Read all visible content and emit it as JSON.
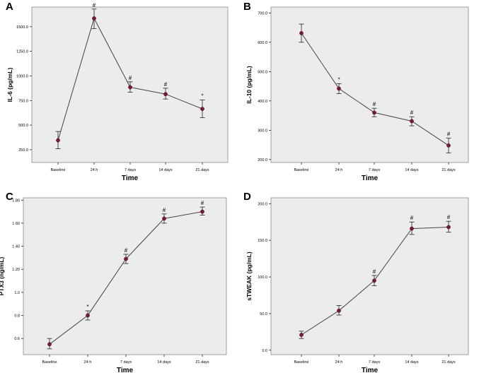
{
  "chart_data": [
    {
      "type": "line",
      "panel": "A",
      "title": "",
      "xlabel": "Time",
      "ylabel": "IL-6 (pg/mL)",
      "categories": [
        "Baseline",
        "24 h",
        "7 days",
        "14 days",
        "21 days"
      ],
      "values": [
        345,
        1585,
        885,
        815,
        665
      ],
      "err_low": [
        260,
        1480,
        835,
        765,
        575
      ],
      "err_high": [
        435,
        1680,
        940,
        875,
        755
      ],
      "annotations": [
        "",
        "#",
        "#",
        "#",
        "*"
      ],
      "yticks": [
        250.0,
        500.0,
        750.0,
        1000.0,
        1250.0,
        1500.0
      ],
      "ytick_labels": [
        "250.0",
        "500.0",
        "750.0",
        "1000.0",
        "1250.0",
        "1500.0"
      ],
      "ylim": [
        120,
        1700
      ],
      "grid": false,
      "colors": {
        "line": "#444444",
        "marker": "#7a1a2e",
        "background": "#ececec"
      }
    },
    {
      "type": "line",
      "panel": "B",
      "title": "",
      "xlabel": "Time",
      "ylabel": "IL-10 (pg/mL)",
      "categories": [
        "Baseline",
        "24 h",
        "7 days",
        "14 days",
        "21 days"
      ],
      "values": [
        631,
        442,
        360,
        331,
        248
      ],
      "err_low": [
        600,
        425,
        346,
        315,
        223
      ],
      "err_high": [
        662,
        459,
        375,
        346,
        273
      ],
      "annotations": [
        "",
        "*",
        "#",
        "#",
        "#"
      ],
      "yticks": [
        200.0,
        300.0,
        400.0,
        500.0,
        600.0,
        700.0
      ],
      "ytick_labels": [
        "200.0",
        "300.0",
        "400.0",
        "500.0",
        "600.0",
        "700.0"
      ],
      "ylim": [
        190,
        720
      ],
      "grid": false,
      "colors": {
        "line": "#444444",
        "marker": "#7a1a2e",
        "background": "#ececec"
      }
    },
    {
      "type": "line",
      "panel": "C",
      "title": "",
      "xlabel": "Time",
      "ylabel": "PTX3 (ng/mL)",
      "categories": [
        "Baseline",
        "24 h",
        "7 days",
        "14 days",
        "21 days"
      ],
      "values": [
        0.55,
        0.8,
        1.29,
        1.64,
        1.7
      ],
      "err_low": [
        0.51,
        0.76,
        1.25,
        1.6,
        1.67
      ],
      "err_high": [
        0.6,
        0.84,
        1.33,
        1.68,
        1.74
      ],
      "annotations": [
        "",
        "*",
        "#",
        "#",
        "#"
      ],
      "yticks": [
        0.6,
        0.8,
        1.0,
        1.2,
        1.4,
        1.6,
        1.8
      ],
      "ytick_labels": [
        "0.6",
        "0.8",
        "1.0",
        "1.20",
        "1.40",
        "1.60",
        "1.80"
      ],
      "ylim": [
        0.46,
        1.82
      ],
      "grid": false,
      "colors": {
        "line": "#444444",
        "marker": "#7a1a2e",
        "background": "#ececec"
      }
    },
    {
      "type": "line",
      "panel": "D",
      "title": "",
      "xlabel": "Time",
      "ylabel": "sTWEAK (pg/mL)",
      "categories": [
        "Baseline",
        "24 h",
        "7 days",
        "14 days",
        "21 days"
      ],
      "values": [
        21,
        54,
        95,
        166,
        168
      ],
      "err_low": [
        16,
        48,
        88,
        158,
        161
      ],
      "err_high": [
        26,
        61,
        102,
        175,
        176
      ],
      "annotations": [
        "",
        "",
        "#",
        "#",
        "#"
      ],
      "yticks": [
        0.0,
        50.0,
        100.0,
        150.0,
        200.0
      ],
      "ytick_labels": [
        "0.0",
        "50.0",
        "100.0",
        "150.0",
        "200.0"
      ],
      "ylim": [
        -6,
        208
      ],
      "grid": false,
      "colors": {
        "line": "#444444",
        "marker": "#7a1a2e",
        "background": "#ececec"
      }
    }
  ]
}
